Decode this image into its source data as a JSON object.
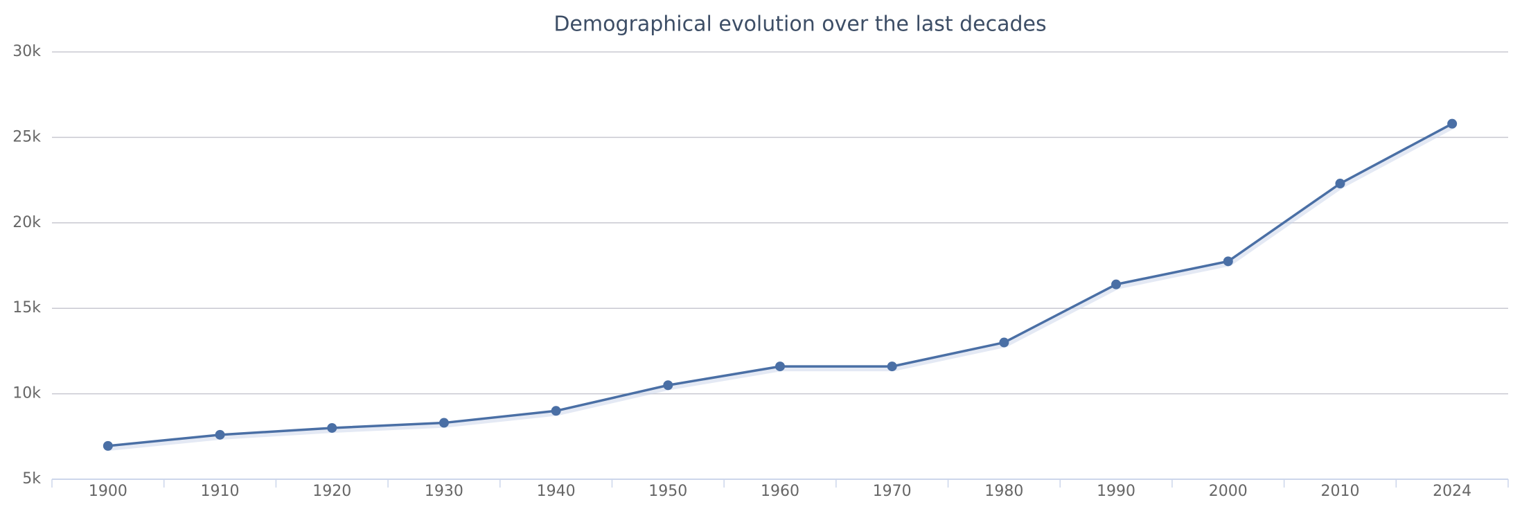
{
  "chart_data": {
    "type": "line",
    "title": "Demographical evolution over the last decades",
    "categories": [
      "1900",
      "1910",
      "1920",
      "1930",
      "1940",
      "1950",
      "1960",
      "1970",
      "1980",
      "1990",
      "2000",
      "2010",
      "2024"
    ],
    "series": [
      {
        "color": "#4a6fa5",
        "values": [
          6950,
          7600,
          8000,
          8300,
          9000,
          10500,
          11600,
          11600,
          13000,
          16400,
          17750,
          22300,
          25800
        ]
      }
    ],
    "ylim": [
      5000,
      30000
    ],
    "yticks": [
      {
        "value": 5000,
        "label": "5k"
      },
      {
        "value": 10000,
        "label": "10k"
      },
      {
        "value": 15000,
        "label": "15k"
      },
      {
        "value": 20000,
        "label": "20k"
      },
      {
        "value": 25000,
        "label": "25k"
      },
      {
        "value": 30000,
        "label": "30k"
      }
    ],
    "grid": true
  }
}
